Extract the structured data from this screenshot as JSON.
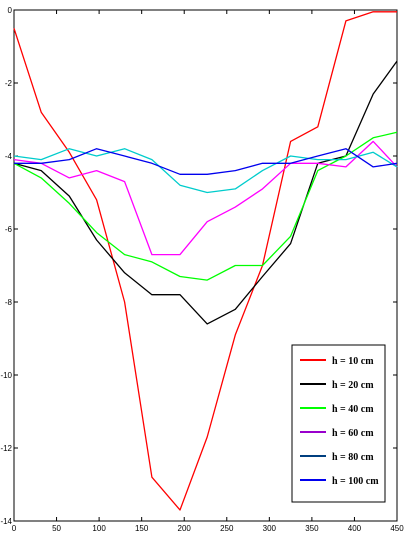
{
  "chart_data": {
    "type": "line",
    "title": "",
    "xlabel": "",
    "ylabel": "",
    "xlim": [
      0,
      450
    ],
    "ylim": [
      -14,
      0
    ],
    "grid": false,
    "legend_placement": "bottom-right",
    "x_ticks": [
      0,
      50,
      100,
      150,
      200,
      250,
      300,
      350,
      400,
      450
    ],
    "y_ticks": [
      0,
      -2,
      -4,
      -6,
      -8,
      -10,
      -12,
      -14
    ],
    "x_tick_labels": [
      "0",
      "50",
      "100",
      "150",
      "200",
      "250",
      "300",
      "350",
      "400",
      "450"
    ],
    "y_tick_labels": [
      "0",
      "-2",
      "-4",
      "-6",
      "-8",
      "-10",
      "-12",
      "-14"
    ],
    "legend": [
      {
        "label": "h = 10 cm",
        "color": "#ff0000"
      },
      {
        "label": "h = 20 cm",
        "color": "#000000"
      },
      {
        "label": "h = 40 cm",
        "color": "#00ff00"
      },
      {
        "label": "h = 60 cm",
        "color": "#9900cc"
      },
      {
        "label": "h = 80 cm",
        "color": "#003f7f"
      },
      {
        "label": "h = 100 cm",
        "color": "#0000ee"
      }
    ],
    "series": [
      {
        "color": "#ff0000",
        "x": [
          0,
          32,
          65,
          97,
          130,
          162,
          195,
          227,
          260,
          292,
          325,
          357,
          390,
          422,
          450
        ],
        "y": [
          -0.5,
          -2.8,
          -3.9,
          -5.2,
          -8.0,
          -12.8,
          -13.7,
          -11.7,
          -8.9,
          -7.0,
          -3.6,
          -3.2,
          -0.3,
          -0.05,
          -0.05
        ]
      },
      {
        "color": "#000000",
        "x": [
          0,
          32,
          65,
          97,
          130,
          162,
          195,
          227,
          260,
          292,
          325,
          357,
          390,
          422,
          450
        ],
        "y": [
          -4.2,
          -4.4,
          -5.1,
          -6.3,
          -7.2,
          -7.8,
          -7.8,
          -8.6,
          -8.2,
          -7.3,
          -6.4,
          -4.2,
          -4.0,
          -2.3,
          -1.4
        ]
      },
      {
        "color": "#00ff00",
        "x": [
          0,
          32,
          65,
          97,
          130,
          162,
          195,
          227,
          260,
          292,
          325,
          357,
          390,
          422,
          450
        ],
        "y": [
          -4.2,
          -4.6,
          -5.3,
          -6.1,
          -6.7,
          -6.9,
          -7.3,
          -7.4,
          -7.0,
          -7.0,
          -6.2,
          -4.4,
          -4.0,
          -3.5,
          -3.35
        ]
      },
      {
        "color": "#ff00ff",
        "x": [
          0,
          32,
          65,
          97,
          130,
          162,
          195,
          227,
          260,
          292,
          325,
          357,
          390,
          422,
          450
        ],
        "y": [
          -4.1,
          -4.2,
          -4.6,
          -4.4,
          -4.7,
          -6.7,
          -6.7,
          -5.8,
          -5.4,
          -4.9,
          -4.2,
          -4.2,
          -4.3,
          -3.6,
          -4.3
        ]
      },
      {
        "color": "#00cccc",
        "x": [
          0,
          32,
          65,
          97,
          130,
          162,
          195,
          227,
          260,
          292,
          325,
          357,
          390,
          422,
          450
        ],
        "y": [
          -4.0,
          -4.1,
          -3.8,
          -4.0,
          -3.8,
          -4.1,
          -4.8,
          -5.0,
          -4.9,
          -4.4,
          -4.0,
          -4.1,
          -4.1,
          -3.9,
          -4.3
        ]
      },
      {
        "color": "#0000ee",
        "x": [
          0,
          32,
          65,
          97,
          130,
          162,
          195,
          227,
          260,
          292,
          325,
          357,
          390,
          422,
          450
        ],
        "y": [
          -4.2,
          -4.2,
          -4.1,
          -3.8,
          -4.0,
          -4.2,
          -4.5,
          -4.5,
          -4.4,
          -4.2,
          -4.2,
          -4.0,
          -3.8,
          -4.3,
          -4.2
        ]
      }
    ]
  }
}
